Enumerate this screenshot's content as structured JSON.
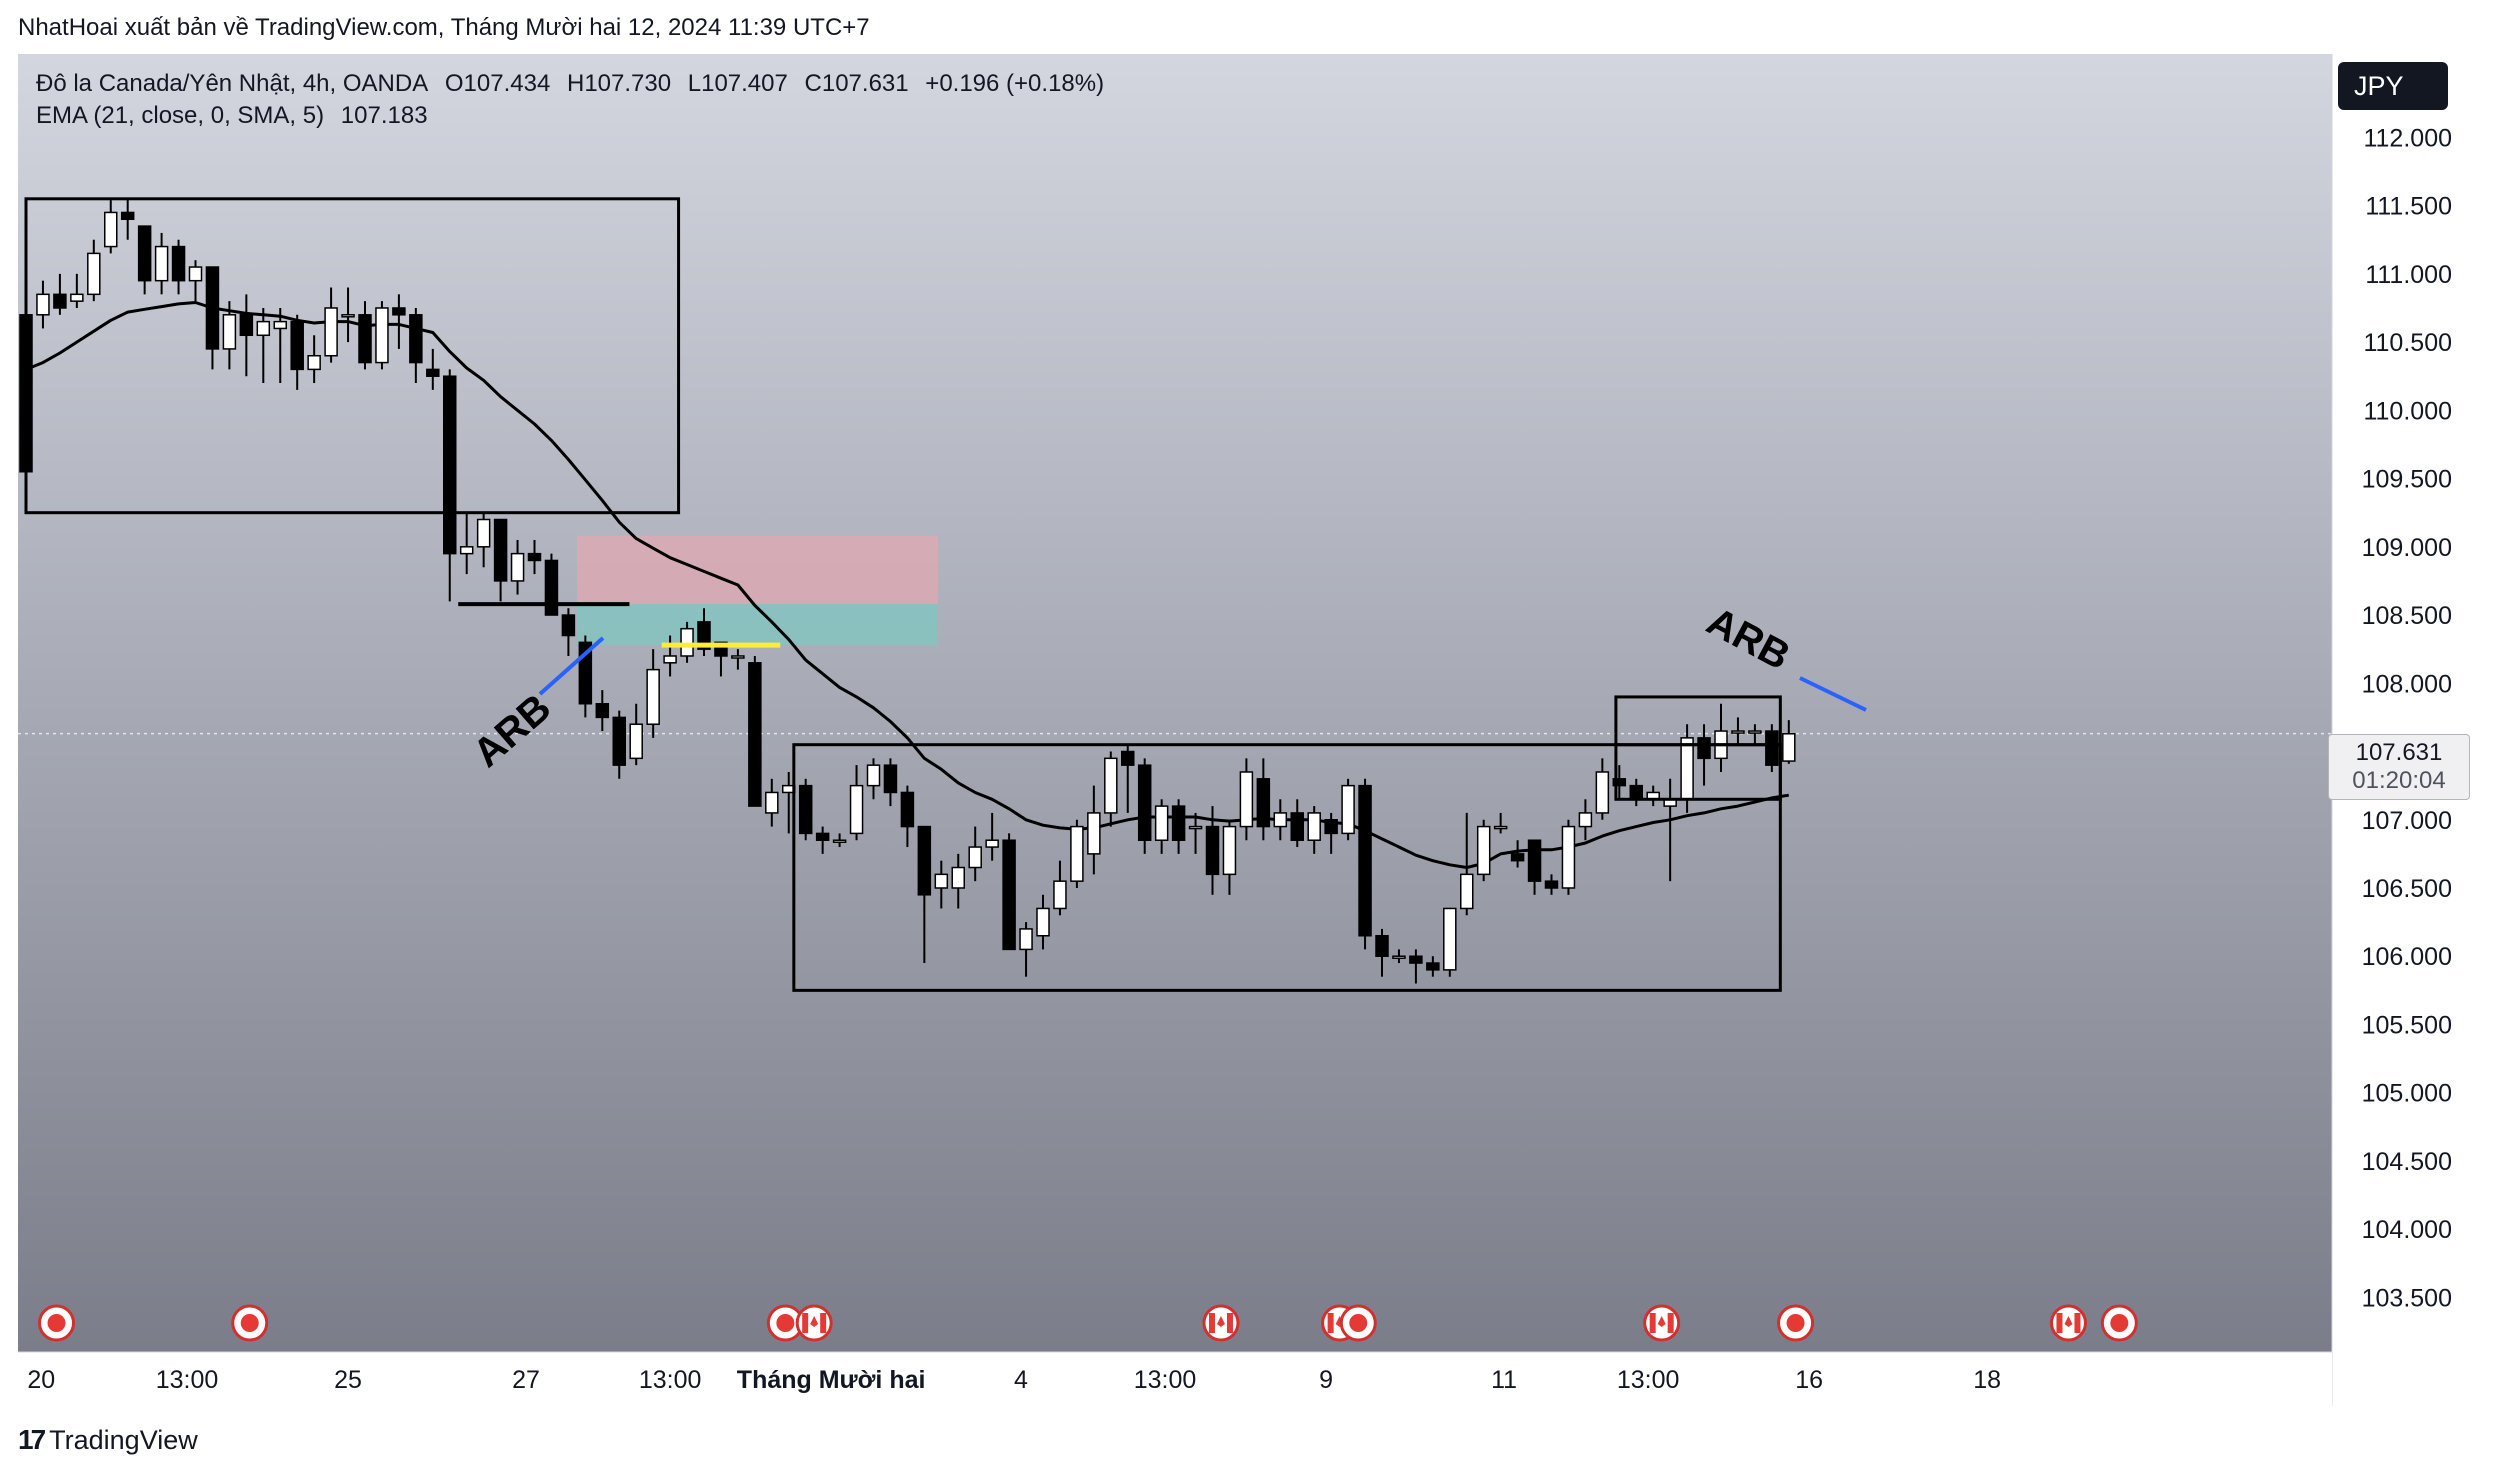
{
  "header": {
    "publish_line": "NhatHoai xuất bản về TradingView.com, Tháng Mười hai 12, 2024 11:39 UTC+7"
  },
  "legend": {
    "symbol": "Đô la Canada/Yên Nhật, 4h, OANDA",
    "open": "O107.434",
    "high": "H107.730",
    "low": "L107.407",
    "close": "C107.631",
    "change": "+0.196 (+0.18%)",
    "indicator": "EMA (21, close, 0, SMA, 5)",
    "indicator_value": "107.183"
  },
  "currency_badge": "JPY",
  "price_tag": {
    "value": "107.631",
    "countdown": "01:20:04"
  },
  "footer": {
    "brand": "TradingView"
  },
  "colors": {
    "bg_top": "#d3d6df",
    "bg_bottom": "#777a86",
    "candle_up": "#ffffff",
    "candle_down": "#000000",
    "ema": "#000000",
    "arb_line": "#2962ff",
    "sl_zone": "#e8a7b0",
    "tp_zone": "#7fc5c0",
    "highlight": "#ffeb3b"
  },
  "annotations": {
    "arb_1": "ARB",
    "arb_2": "ARB"
  },
  "chart_data": {
    "type": "candlestick",
    "symbol": "CADJPY",
    "timeframe": "4h",
    "ylim": [
      103.1,
      112.6
    ],
    "y_ticks": [
      "112.000",
      "111.500",
      "111.000",
      "110.500",
      "110.000",
      "109.500",
      "109.000",
      "108.500",
      "108.000",
      "107.500",
      "107.000",
      "106.500",
      "106.000",
      "105.500",
      "105.000",
      "104.500",
      "104.000",
      "103.500"
    ],
    "x_tick_labels": [
      {
        "label": "20",
        "bar": 0.9
      },
      {
        "label": "13:00",
        "bar": 9.5
      },
      {
        "label": "25",
        "bar": 19
      },
      {
        "label": "27",
        "bar": 29.5
      },
      {
        "label": "13:00",
        "bar": 38
      },
      {
        "label": "Tháng Mười hai",
        "bar": 47.5,
        "bold": true
      },
      {
        "label": "4",
        "bar": 58.7
      },
      {
        "label": "13:00",
        "bar": 67.2
      },
      {
        "label": "9",
        "bar": 76.7
      },
      {
        "label": "11",
        "bar": 87.2
      },
      {
        "label": "13:00",
        "bar": 95.7
      },
      {
        "label": "16",
        "bar": 105.2
      },
      {
        "label": "18",
        "bar": 115.7
      }
    ],
    "candles": [
      [
        110.7,
        109.55,
        110.7,
        109.55
      ],
      [
        110.7,
        110.85,
        110.95,
        110.6
      ],
      [
        110.85,
        110.75,
        111.0,
        110.7
      ],
      [
        110.8,
        110.85,
        111.0,
        110.75
      ],
      [
        110.85,
        111.15,
        111.25,
        110.8
      ],
      [
        111.2,
        111.45,
        111.55,
        111.15
      ],
      [
        111.45,
        111.4,
        111.55,
        111.25
      ],
      [
        111.35,
        110.95,
        111.35,
        110.85
      ],
      [
        110.95,
        111.2,
        111.3,
        110.85
      ],
      [
        111.2,
        110.95,
        111.25,
        110.85
      ],
      [
        110.95,
        111.05,
        111.1,
        110.8
      ],
      [
        111.05,
        110.45,
        111.05,
        110.3
      ],
      [
        110.45,
        110.7,
        110.8,
        110.3
      ],
      [
        110.7,
        110.55,
        110.85,
        110.25
      ],
      [
        110.55,
        110.65,
        110.75,
        110.2
      ],
      [
        110.6,
        110.65,
        110.75,
        110.2
      ],
      [
        110.65,
        110.3,
        110.7,
        110.15
      ],
      [
        110.3,
        110.4,
        110.55,
        110.2
      ],
      [
        110.4,
        110.75,
        110.9,
        110.35
      ],
      [
        110.7,
        110.7,
        110.9,
        110.5
      ],
      [
        110.7,
        110.35,
        110.8,
        110.3
      ],
      [
        110.35,
        110.75,
        110.8,
        110.3
      ],
      [
        110.75,
        110.7,
        110.85,
        110.45
      ],
      [
        110.7,
        110.35,
        110.75,
        110.2
      ],
      [
        110.3,
        110.25,
        110.45,
        110.15
      ],
      [
        110.25,
        108.95,
        110.3,
        108.6
      ],
      [
        108.95,
        109.0,
        109.25,
        108.8
      ],
      [
        109.0,
        109.2,
        109.25,
        108.85
      ],
      [
        109.2,
        108.75,
        109.2,
        108.6
      ],
      [
        108.75,
        108.95,
        109.05,
        108.65
      ],
      [
        108.95,
        108.9,
        109.05,
        108.8
      ],
      [
        108.9,
        108.5,
        108.95,
        108.5
      ],
      [
        108.5,
        108.35,
        108.55,
        108.2
      ],
      [
        108.3,
        107.85,
        108.35,
        107.75
      ],
      [
        107.85,
        107.75,
        107.95,
        107.65
      ],
      [
        107.75,
        107.4,
        107.8,
        107.3
      ],
      [
        107.45,
        107.7,
        107.85,
        107.4
      ],
      [
        107.7,
        108.1,
        108.25,
        107.6
      ],
      [
        108.15,
        108.2,
        108.35,
        108.05
      ],
      [
        108.2,
        108.4,
        108.45,
        108.15
      ],
      [
        108.45,
        108.25,
        108.55,
        108.2
      ],
      [
        108.3,
        108.2,
        108.3,
        108.05
      ],
      [
        108.2,
        108.2,
        108.25,
        108.1
      ],
      [
        108.15,
        107.1,
        108.2,
        107.1
      ],
      [
        107.05,
        107.2,
        107.3,
        106.95
      ],
      [
        107.2,
        107.25,
        107.35,
        106.9
      ],
      [
        107.25,
        106.9,
        107.3,
        106.85
      ],
      [
        106.9,
        106.85,
        106.95,
        106.75
      ],
      [
        106.85,
        106.85,
        106.9,
        106.8
      ],
      [
        106.9,
        107.25,
        107.4,
        106.85
      ],
      [
        107.25,
        107.4,
        107.45,
        107.15
      ],
      [
        107.4,
        107.2,
        107.45,
        107.1
      ],
      [
        107.2,
        106.95,
        107.25,
        106.8
      ],
      [
        106.95,
        106.45,
        106.95,
        105.95
      ],
      [
        106.5,
        106.6,
        106.7,
        106.35
      ],
      [
        106.5,
        106.65,
        106.75,
        106.35
      ],
      [
        106.65,
        106.8,
        106.95,
        106.55
      ],
      [
        106.8,
        106.85,
        107.05,
        106.7
      ],
      [
        106.85,
        106.05,
        106.9,
        106.05
      ],
      [
        106.05,
        106.2,
        106.25,
        105.85
      ],
      [
        106.15,
        106.35,
        106.45,
        106.05
      ],
      [
        106.35,
        106.55,
        106.7,
        106.3
      ],
      [
        106.55,
        106.95,
        107.0,
        106.5
      ],
      [
        106.75,
        107.05,
        107.25,
        106.6
      ],
      [
        107.05,
        107.45,
        107.5,
        106.95
      ],
      [
        107.5,
        107.4,
        107.55,
        107.05
      ],
      [
        107.4,
        106.85,
        107.45,
        106.75
      ],
      [
        106.85,
        107.1,
        107.15,
        106.75
      ],
      [
        107.1,
        106.85,
        107.15,
        106.75
      ],
      [
        106.95,
        106.95,
        107.05,
        106.75
      ],
      [
        106.95,
        106.6,
        107.1,
        106.45
      ],
      [
        106.6,
        106.95,
        107.0,
        106.45
      ],
      [
        106.95,
        107.35,
        107.45,
        106.85
      ],
      [
        107.3,
        106.95,
        107.45,
        106.85
      ],
      [
        106.95,
        107.05,
        107.15,
        106.85
      ],
      [
        107.05,
        106.85,
        107.15,
        106.8
      ],
      [
        106.85,
        107.05,
        107.1,
        106.75
      ],
      [
        107.0,
        106.9,
        107.05,
        106.75
      ],
      [
        106.9,
        107.25,
        107.3,
        106.85
      ],
      [
        107.25,
        106.15,
        107.3,
        106.05
      ],
      [
        106.15,
        106.0,
        106.2,
        105.85
      ],
      [
        106.0,
        106.0,
        106.05,
        105.95
      ],
      [
        106.0,
        105.95,
        106.05,
        105.8
      ],
      [
        105.95,
        105.9,
        106.0,
        105.85
      ],
      [
        105.9,
        106.35,
        106.35,
        105.85
      ],
      [
        106.35,
        106.6,
        107.05,
        106.3
      ],
      [
        106.6,
        106.95,
        107.0,
        106.55
      ],
      [
        106.95,
        106.95,
        107.05,
        106.9
      ],
      [
        106.75,
        106.7,
        106.85,
        106.65
      ],
      [
        106.85,
        106.55,
        106.85,
        106.45
      ],
      [
        106.55,
        106.5,
        106.6,
        106.45
      ],
      [
        106.5,
        106.95,
        107.0,
        106.45
      ],
      [
        106.95,
        107.05,
        107.15,
        106.85
      ],
      [
        107.05,
        107.35,
        107.45,
        107.0
      ],
      [
        107.3,
        107.25,
        107.4,
        107.15
      ],
      [
        107.25,
        107.15,
        107.3,
        107.1
      ],
      [
        107.15,
        107.2,
        107.25,
        107.1
      ],
      [
        107.1,
        107.15,
        107.3,
        106.55
      ],
      [
        107.15,
        107.6,
        107.7,
        107.05
      ],
      [
        107.6,
        107.45,
        107.7,
        107.25
      ],
      [
        107.45,
        107.65,
        107.85,
        107.35
      ],
      [
        107.65,
        107.65,
        107.75,
        107.55
      ],
      [
        107.65,
        107.65,
        107.7,
        107.55
      ],
      [
        107.65,
        107.4,
        107.7,
        107.35
      ],
      [
        107.43,
        107.63,
        107.73,
        107.41
      ]
    ],
    "ema": [
      110.3,
      110.35,
      110.42,
      110.5,
      110.58,
      110.66,
      110.72,
      110.74,
      110.76,
      110.78,
      110.79,
      110.75,
      110.73,
      110.71,
      110.7,
      110.69,
      110.66,
      110.64,
      110.65,
      110.65,
      110.62,
      110.63,
      110.63,
      110.6,
      110.57,
      110.43,
      110.31,
      110.22,
      110.1,
      110.0,
      109.9,
      109.78,
      109.64,
      109.49,
      109.34,
      109.18,
      109.06,
      108.99,
      108.92,
      108.87,
      108.82,
      108.77,
      108.72,
      108.57,
      108.45,
      108.32,
      108.17,
      108.07,
      107.97,
      107.9,
      107.82,
      107.72,
      107.6,
      107.45,
      107.37,
      107.27,
      107.2,
      107.15,
      107.08,
      107.0,
      106.96,
      106.94,
      106.93,
      106.94,
      106.97,
      107.0,
      107.02,
      107.02,
      107.02,
      107.02,
      107.0,
      106.99,
      107.0,
      107.01,
      107.0,
      107.0,
      107.0,
      106.98,
      106.97,
      106.92,
      106.86,
      106.8,
      106.74,
      106.7,
      106.67,
      106.65,
      106.68,
      106.75,
      106.77,
      106.78,
      106.78,
      106.8,
      106.83,
      106.88,
      106.92,
      106.95,
      106.98,
      107.0,
      107.03,
      107.05,
      107.08,
      107.1,
      107.13,
      107.16,
      107.18
    ],
    "events_bars": [
      1.8,
      13.2,
      44.8,
      46.5,
      70.5,
      77.5,
      78.6,
      96.5,
      104.4,
      120.5,
      123.5
    ],
    "event_types": [
      "red",
      "red",
      "red",
      "ca",
      "ca",
      "ca",
      "red",
      "ca",
      "red",
      "ca",
      "red"
    ],
    "boxes": [
      {
        "bar_start": 0,
        "bar_end": 38.5,
        "top": 111.55,
        "bottom": 109.25
      },
      {
        "bar_start": 45.3,
        "bar_end": 103.5,
        "top": 107.55,
        "bottom": 105.75
      },
      {
        "bar_start": 93.8,
        "bar_end": 103.5,
        "top": 107.9,
        "bottom": 107.15
      },
      {
        "bar_start": 93.8,
        "bar_end": 103.5,
        "top": 107.55,
        "bottom": 107.55
      }
    ],
    "position": {
      "bar_start": 32.5,
      "bar_end": 53.8,
      "entry": 108.58,
      "stop": 109.08,
      "target": 108.28
    },
    "level_line": {
      "bar_start": 25.5,
      "bar_end": 35.6,
      "price": 108.58
    },
    "highlight_line": {
      "bar_start": 37.5,
      "bar_end": 44.5,
      "price": 108.28
    },
    "current_price": 107.631
  }
}
